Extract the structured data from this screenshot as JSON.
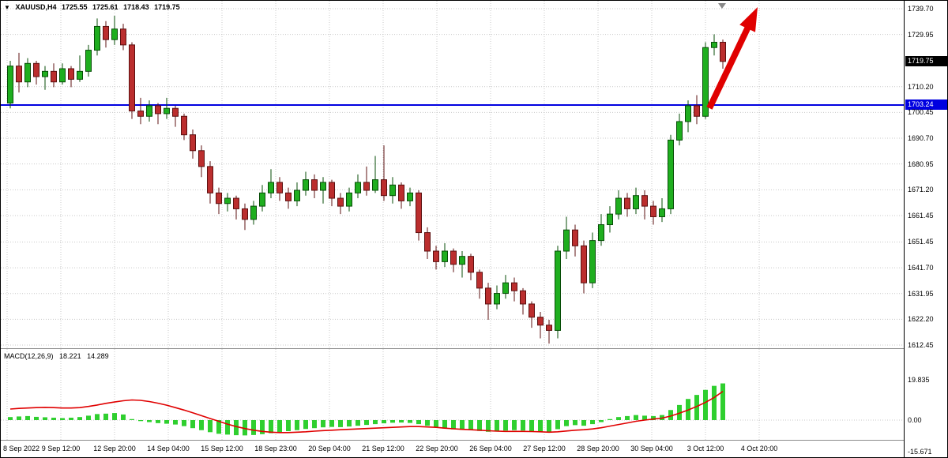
{
  "symbol_info": {
    "dropdown_icon": "▼",
    "title": "XAUUSD,H4",
    "open": "1725.55",
    "high": "1725.61",
    "low": "1718.43",
    "close": "1719.75"
  },
  "macd_info": {
    "label": "MACD(12,26,9)",
    "macd_value": "18.221",
    "signal_value": "14.289"
  },
  "price_badges": {
    "current": {
      "text": "1719.75",
      "price": 1719.75
    },
    "hline": {
      "text": "1703.24",
      "price": 1703.24
    }
  },
  "hline": {
    "price": 1703.24
  },
  "colors": {
    "bull_fill": "#1fae1f",
    "bull_border": "#074d07",
    "bear_fill": "#bb2e2e",
    "bear_border": "#5c1010",
    "grid": "#c9c9c9",
    "blue_line": "#0000e0",
    "signal_line": "#e00000",
    "histogram": "#2fcf2f",
    "arrow": "#e00000",
    "shift_marker": "#888888"
  },
  "price_axis": {
    "labels": [
      {
        "text": "1739.70",
        "price": 1739.7
      },
      {
        "text": "1729.95",
        "price": 1729.95
      },
      {
        "text": "1710.20",
        "price": 1710.2
      },
      {
        "text": "1700.45",
        "price": 1700.45
      },
      {
        "text": "1690.70",
        "price": 1690.7
      },
      {
        "text": "1680.95",
        "price": 1680.95
      },
      {
        "text": "1671.20",
        "price": 1671.2
      },
      {
        "text": "1661.45",
        "price": 1661.45
      },
      {
        "text": "1651.45",
        "price": 1651.45
      },
      {
        "text": "1641.70",
        "price": 1641.7
      },
      {
        "text": "1631.95",
        "price": 1631.95
      },
      {
        "text": "1622.20",
        "price": 1622.2
      },
      {
        "text": "1612.45",
        "price": 1612.45
      }
    ]
  },
  "macd_axis": {
    "labels": [
      {
        "text": "19.835",
        "value": 19.835
      },
      {
        "text": "0.00",
        "value": 0
      },
      {
        "text": "-15.671",
        "value": -15.671
      }
    ]
  },
  "time_axis": {
    "labels": [
      "8 Sep 2022",
      "9 Sep 12:00",
      "12 Sep 20:00",
      "14 Sep 04:00",
      "15 Sep 12:00",
      "18 Sep 23:00",
      "20 Sep 04:00",
      "21 Sep 12:00",
      "22 Sep 20:00",
      "26 Sep 04:00",
      "27 Sep 12:00",
      "28 Sep 20:00",
      "30 Sep 04:00",
      "3 Oct 12:00",
      "4 Oct 20:00"
    ]
  },
  "chart_data": {
    "type": "candlestick",
    "symbol": "XAUUSD",
    "timeframe": "H4",
    "title": "XAUUSD,H4",
    "ylim_main": [
      1612.45,
      1739.7
    ],
    "current_price": 1719.75,
    "horizontal_line_price": 1703.24,
    "annotations": {
      "trend_arrow": "up-right, red, top right area"
    },
    "candles": [
      [
        1704,
        1720,
        1702,
        1718
      ],
      [
        1718,
        1723,
        1708,
        1712
      ],
      [
        1712,
        1721,
        1710,
        1719
      ],
      [
        1719,
        1720,
        1711,
        1714
      ],
      [
        1714,
        1718,
        1709,
        1716
      ],
      [
        1716,
        1719,
        1710,
        1712
      ],
      [
        1712,
        1719,
        1711,
        1717
      ],
      [
        1717,
        1718,
        1710,
        1713
      ],
      [
        1713,
        1722,
        1712,
        1716
      ],
      [
        1716,
        1726,
        1714,
        1724
      ],
      [
        1724,
        1736,
        1722,
        1733
      ],
      [
        1733,
        1735,
        1725,
        1728
      ],
      [
        1728,
        1737,
        1726,
        1732
      ],
      [
        1732,
        1734,
        1724,
        1726
      ],
      [
        1726,
        1727,
        1698,
        1701
      ],
      [
        1701,
        1706,
        1696,
        1699
      ],
      [
        1699,
        1705,
        1697,
        1703
      ],
      [
        1703,
        1704,
        1696,
        1700
      ],
      [
        1700,
        1706,
        1698,
        1702
      ],
      [
        1702,
        1703,
        1695,
        1699
      ],
      [
        1699,
        1700,
        1690,
        1692
      ],
      [
        1692,
        1694,
        1683,
        1686
      ],
      [
        1686,
        1688,
        1676,
        1680
      ],
      [
        1680,
        1682,
        1666,
        1670
      ],
      [
        1670,
        1672,
        1662,
        1666
      ],
      [
        1666,
        1670,
        1663,
        1668
      ],
      [
        1668,
        1669,
        1660,
        1664
      ],
      [
        1664,
        1666,
        1656,
        1660
      ],
      [
        1660,
        1667,
        1658,
        1665
      ],
      [
        1665,
        1673,
        1663,
        1670
      ],
      [
        1670,
        1679,
        1668,
        1674
      ],
      [
        1674,
        1676,
        1667,
        1670
      ],
      [
        1670,
        1672,
        1664,
        1667
      ],
      [
        1667,
        1674,
        1665,
        1671
      ],
      [
        1671,
        1678,
        1669,
        1675
      ],
      [
        1675,
        1677,
        1668,
        1671
      ],
      [
        1671,
        1676,
        1666,
        1674
      ],
      [
        1674,
        1675,
        1665,
        1668
      ],
      [
        1668,
        1670,
        1662,
        1665
      ],
      [
        1665,
        1672,
        1663,
        1670
      ],
      [
        1670,
        1677,
        1668,
        1674
      ],
      [
        1674,
        1680,
        1669,
        1671
      ],
      [
        1671,
        1684,
        1670,
        1675
      ],
      [
        1675,
        1688,
        1667,
        1669
      ],
      [
        1669,
        1676,
        1666,
        1673
      ],
      [
        1673,
        1674,
        1664,
        1667
      ],
      [
        1667,
        1672,
        1665,
        1670
      ],
      [
        1670,
        1671,
        1652,
        1655
      ],
      [
        1655,
        1657,
        1645,
        1648
      ],
      [
        1648,
        1650,
        1641,
        1644
      ],
      [
        1644,
        1651,
        1642,
        1648
      ],
      [
        1648,
        1649,
        1640,
        1643
      ],
      [
        1643,
        1648,
        1638,
        1646
      ],
      [
        1646,
        1647,
        1637,
        1640
      ],
      [
        1640,
        1641,
        1630,
        1634
      ],
      [
        1634,
        1636,
        1622,
        1628
      ],
      [
        1628,
        1635,
        1626,
        1632
      ],
      [
        1632,
        1639,
        1630,
        1636
      ],
      [
        1636,
        1638,
        1629,
        1633
      ],
      [
        1633,
        1634,
        1624,
        1628
      ],
      [
        1628,
        1629,
        1619,
        1623
      ],
      [
        1623,
        1625,
        1615,
        1620
      ],
      [
        1620,
        1622,
        1613,
        1618
      ],
      [
        1618,
        1650,
        1615,
        1648
      ],
      [
        1648,
        1661,
        1645,
        1656
      ],
      [
        1656,
        1658,
        1646,
        1650
      ],
      [
        1650,
        1652,
        1632,
        1636
      ],
      [
        1636,
        1655,
        1634,
        1652
      ],
      [
        1652,
        1662,
        1650,
        1658
      ],
      [
        1658,
        1665,
        1655,
        1662
      ],
      [
        1662,
        1671,
        1660,
        1668
      ],
      [
        1668,
        1670,
        1661,
        1664
      ],
      [
        1664,
        1672,
        1662,
        1669
      ],
      [
        1669,
        1671,
        1660,
        1665
      ],
      [
        1665,
        1667,
        1658,
        1661
      ],
      [
        1661,
        1668,
        1659,
        1664
      ],
      [
        1664,
        1692,
        1662,
        1690
      ],
      [
        1690,
        1700,
        1688,
        1697
      ],
      [
        1697,
        1705,
        1693,
        1703
      ],
      [
        1703,
        1707,
        1696,
        1699
      ],
      [
        1699,
        1727,
        1698,
        1725
      ],
      [
        1725,
        1730,
        1722,
        1727
      ],
      [
        1727,
        1728,
        1717,
        1719.75
      ]
    ],
    "macd": {
      "params": "12,26,9",
      "current_macd": 18.221,
      "current_signal": 14.289,
      "ylim": [
        -15.671,
        19.835
      ],
      "histogram": [
        1.5,
        1.8,
        2.0,
        1.6,
        1.4,
        1.2,
        1.0,
        1.2,
        1.5,
        2.2,
        3.0,
        3.2,
        3.5,
        2.8,
        0.5,
        -0.5,
        -1.0,
        -1.5,
        -1.8,
        -2.2,
        -3.0,
        -4.0,
        -5.0,
        -6.0,
        -6.8,
        -7.2,
        -7.5,
        -7.6,
        -7.4,
        -7.0,
        -6.5,
        -6.0,
        -5.5,
        -5.0,
        -4.4,
        -4.0,
        -3.6,
        -3.4,
        -3.5,
        -3.2,
        -2.8,
        -2.4,
        -2.0,
        -1.6,
        -1.3,
        -1.2,
        -1.4,
        -2.0,
        -2.8,
        -3.6,
        -4.2,
        -4.6,
        -4.8,
        -5.0,
        -5.4,
        -5.8,
        -5.6,
        -5.2,
        -5.0,
        -5.2,
        -5.6,
        -6.0,
        -6.2,
        -4.5,
        -3.0,
        -2.5,
        -2.8,
        -2.0,
        -1.0,
        0.5,
        1.5,
        2.0,
        2.5,
        2.2,
        2.0,
        2.5,
        5.0,
        7.5,
        10.5,
        12.5,
        15.0,
        17.0,
        18.221
      ],
      "signal": [
        5.5,
        5.8,
        6.0,
        6.2,
        6.3,
        6.2,
        6.0,
        6.0,
        6.2,
        6.8,
        7.5,
        8.3,
        9.0,
        9.6,
        10.0,
        9.8,
        9.2,
        8.4,
        7.4,
        6.2,
        5.0,
        3.6,
        2.2,
        0.8,
        -0.6,
        -2.0,
        -3.2,
        -4.2,
        -5.0,
        -5.6,
        -6.0,
        -6.2,
        -6.2,
        -6.0,
        -5.8,
        -5.5,
        -5.2,
        -5.0,
        -4.8,
        -4.6,
        -4.4,
        -4.2,
        -4.0,
        -3.8,
        -3.6,
        -3.4,
        -3.2,
        -3.2,
        -3.4,
        -3.6,
        -4.0,
        -4.3,
        -4.6,
        -4.8,
        -5.0,
        -5.3,
        -5.5,
        -5.6,
        -5.6,
        -5.6,
        -5.7,
        -5.8,
        -6.0,
        -5.8,
        -5.4,
        -5.0,
        -4.8,
        -4.4,
        -3.8,
        -3.0,
        -2.2,
        -1.4,
        -0.6,
        0.0,
        0.5,
        1.0,
        2.0,
        3.4,
        5.0,
        6.8,
        8.8,
        11.2,
        14.289
      ]
    }
  }
}
